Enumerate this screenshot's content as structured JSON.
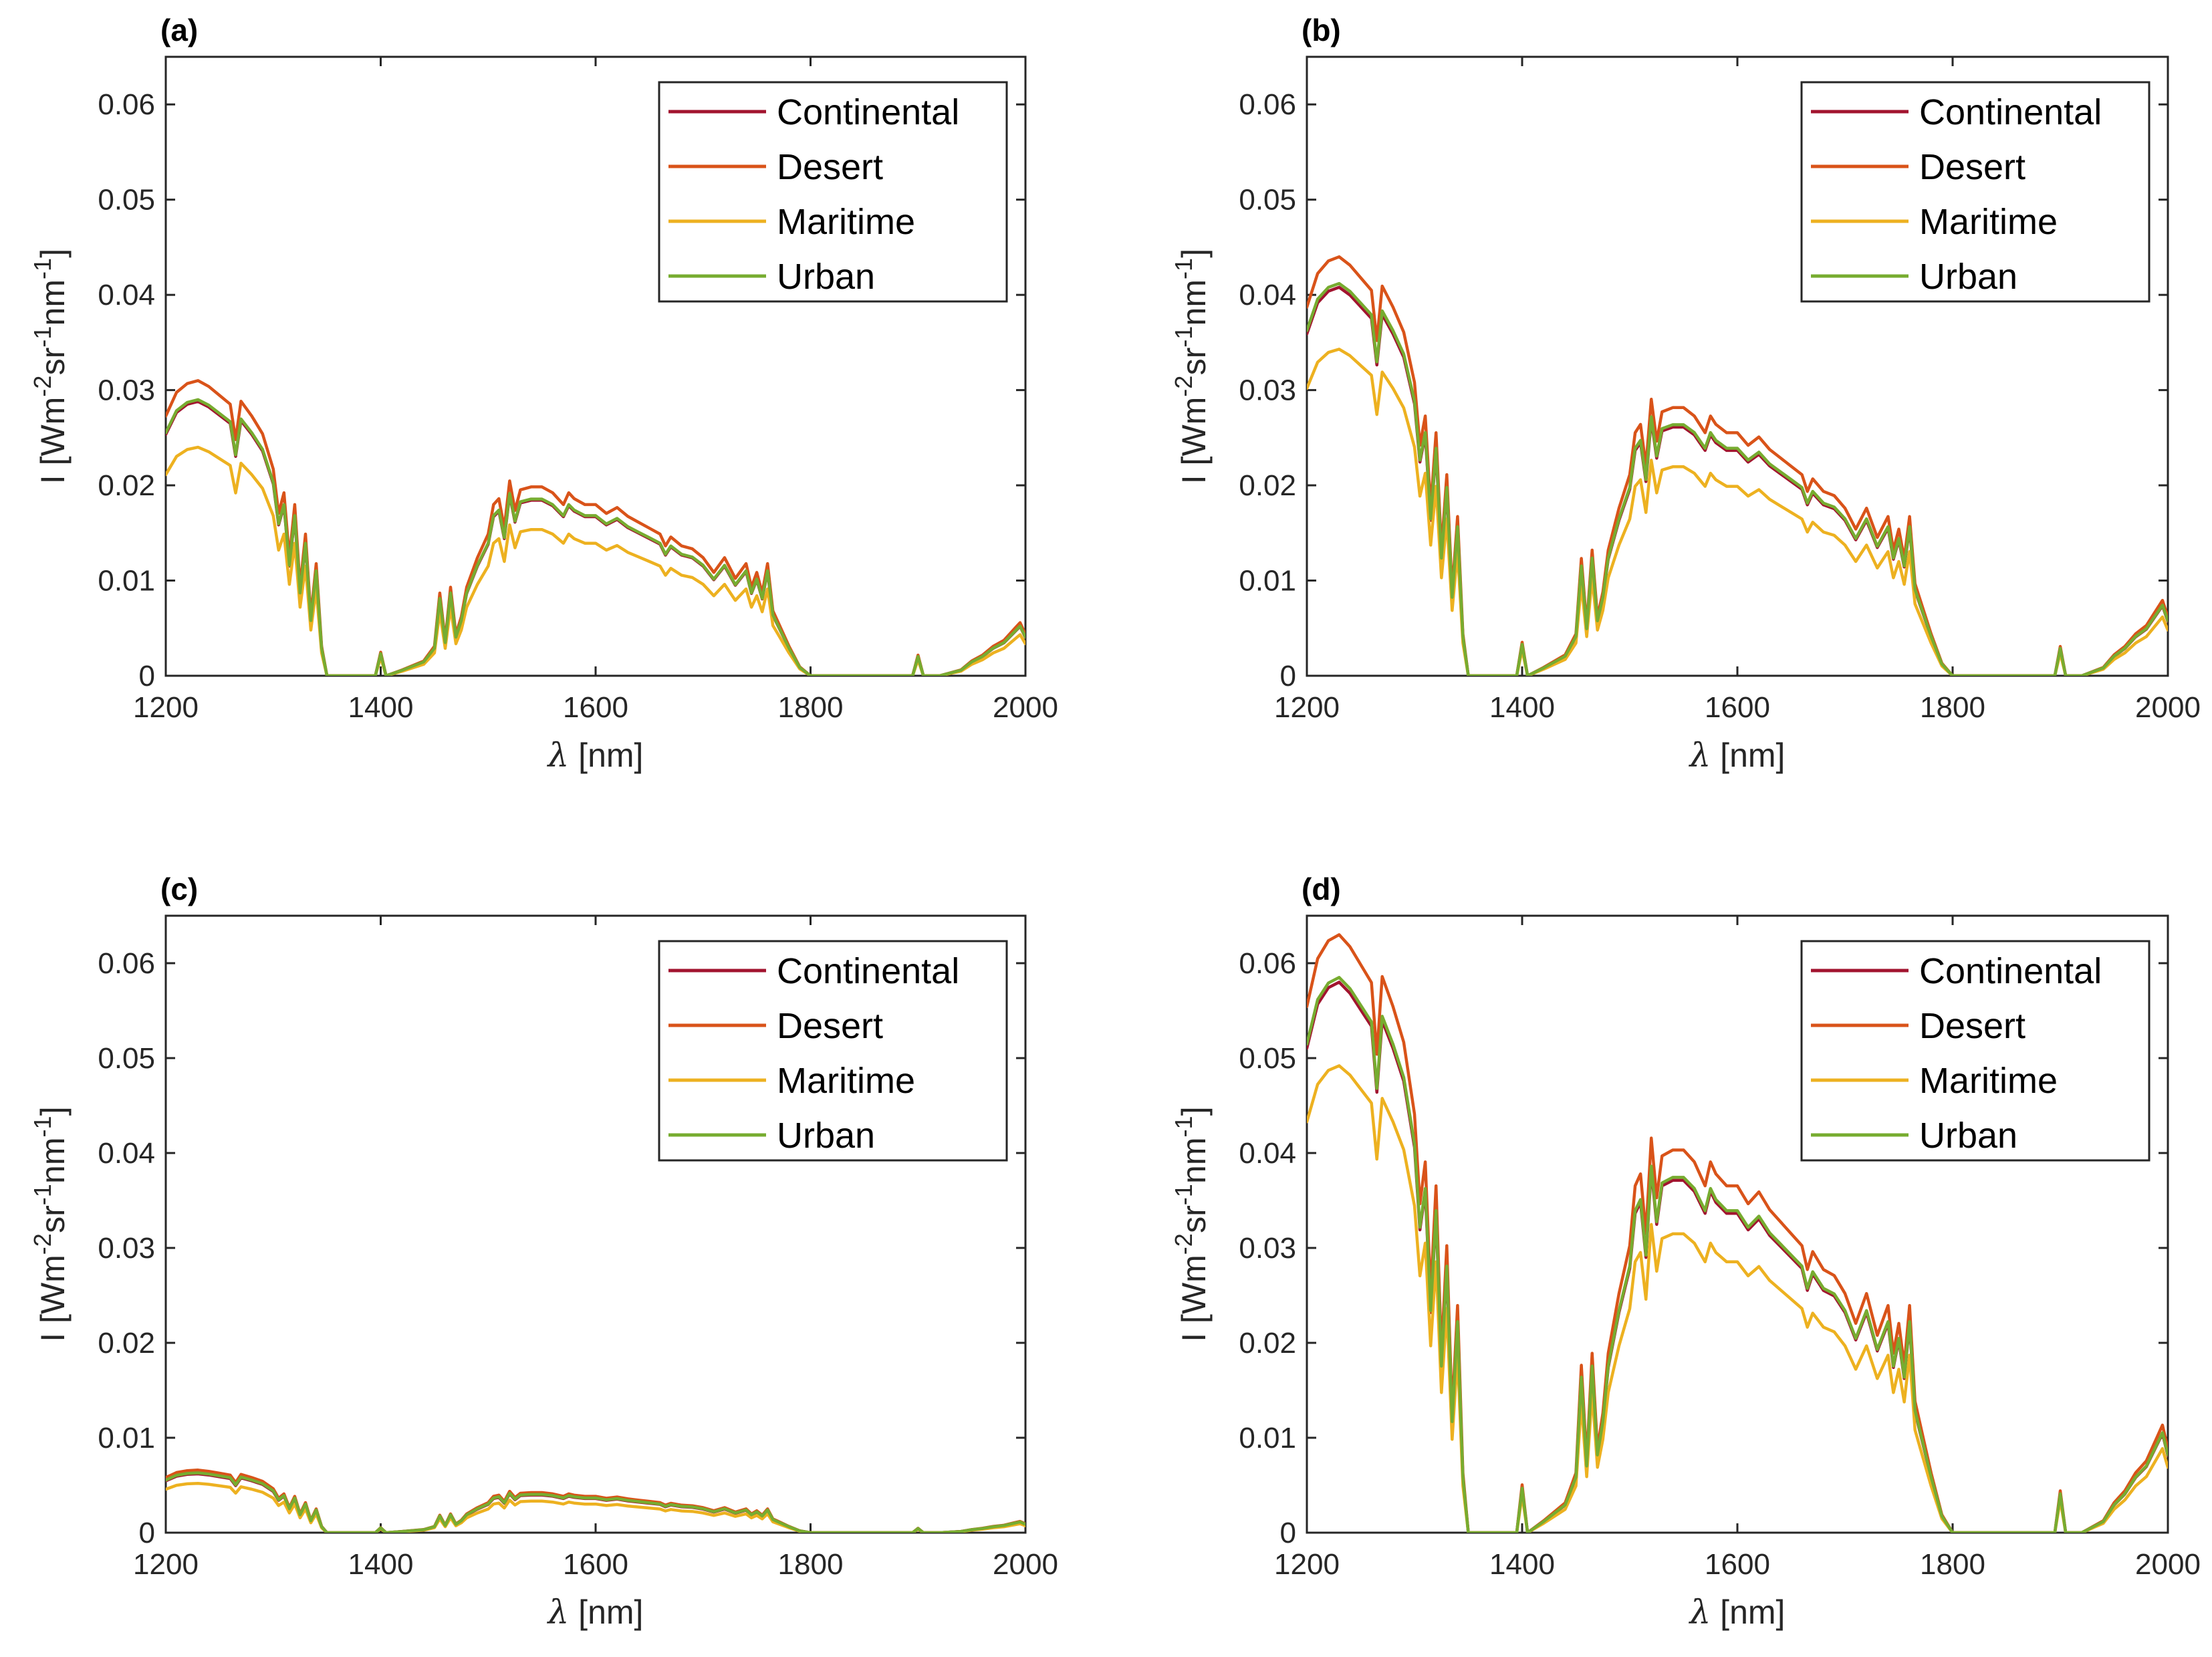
{
  "colors": {
    "Continental": "#a2142f",
    "Desert": "#d95319",
    "Maritime": "#edb120",
    "Urban": "#77ac30"
  },
  "chart_data": [
    {
      "type": "line",
      "panel_label": "(a)",
      "xlabel_symbol": "λ",
      "xlabel_unit": "[nm]",
      "ylabel_main": "I [Wm",
      "ylabel_sup1": "-2",
      "ylabel_mid1": "sr",
      "ylabel_sup2": "-1",
      "ylabel_mid2": "nm",
      "ylabel_sup3": "-1",
      "ylabel_end": "]",
      "xlim": [
        1200,
        2000
      ],
      "ylim": [
        0,
        0.065
      ],
      "xticks": [
        1200,
        1400,
        1600,
        1800,
        2000
      ],
      "xtick_labels": [
        "1200",
        "1400",
        "1600",
        "1800",
        "2000"
      ],
      "yticks": [
        0,
        0.01,
        0.02,
        0.03,
        0.04,
        0.05,
        0.06
      ],
      "ytick_labels": [
        "0",
        "0.01",
        "0.02",
        "0.03",
        "0.04",
        "0.05",
        "0.06"
      ],
      "legend_position": "top-right",
      "legend": [
        "Continental",
        "Desert",
        "Maritime",
        "Urban"
      ],
      "series": [
        {
          "name": "Continental",
          "scale": 0.0288
        },
        {
          "name": "Desert",
          "scale": 0.031
        },
        {
          "name": "Maritime",
          "scale": 0.024
        },
        {
          "name": "Urban",
          "scale": 0.029
        }
      ]
    },
    {
      "type": "line",
      "panel_label": "(b)",
      "xlabel_symbol": "λ",
      "xlabel_unit": "[nm]",
      "ylabel_main": "I [Wm",
      "ylabel_sup1": "-2",
      "ylabel_mid1": "sr",
      "ylabel_sup2": "-1",
      "ylabel_mid2": "nm",
      "ylabel_sup3": "-1",
      "ylabel_end": "]",
      "xlim": [
        1200,
        2000
      ],
      "ylim": [
        0,
        0.065
      ],
      "xticks": [
        1200,
        1400,
        1600,
        1800,
        2000
      ],
      "xtick_labels": [
        "1200",
        "1400",
        "1600",
        "1800",
        "2000"
      ],
      "yticks": [
        0,
        0.01,
        0.02,
        0.03,
        0.04,
        0.05,
        0.06
      ],
      "ytick_labels": [
        "0",
        "0.01",
        "0.02",
        "0.03",
        "0.04",
        "0.05",
        "0.06"
      ],
      "legend_position": "top-right",
      "legend": [
        "Continental",
        "Desert",
        "Maritime",
        "Urban"
      ],
      "series": [
        {
          "name": "Continental",
          "scale": 0.0408
        },
        {
          "name": "Desert",
          "scale": 0.044
        },
        {
          "name": "Maritime",
          "scale": 0.0343
        },
        {
          "name": "Urban",
          "scale": 0.0412
        }
      ]
    },
    {
      "type": "line",
      "panel_label": "(c)",
      "xlabel_symbol": "λ",
      "xlabel_unit": "[nm]",
      "ylabel_main": "I [Wm",
      "ylabel_sup1": "-2",
      "ylabel_mid1": "sr",
      "ylabel_sup2": "-1",
      "ylabel_mid2": "nm",
      "ylabel_sup3": "-1",
      "ylabel_end": "]",
      "xlim": [
        1200,
        2000
      ],
      "ylim": [
        0,
        0.065
      ],
      "xticks": [
        1200,
        1400,
        1600,
        1800,
        2000
      ],
      "xtick_labels": [
        "1200",
        "1400",
        "1600",
        "1800",
        "2000"
      ],
      "yticks": [
        0,
        0.01,
        0.02,
        0.03,
        0.04,
        0.05,
        0.06
      ],
      "ytick_labels": [
        "0",
        "0.01",
        "0.02",
        "0.03",
        "0.04",
        "0.05",
        "0.06"
      ],
      "legend_position": "top-right",
      "legend": [
        "Continental",
        "Desert",
        "Maritime",
        "Urban"
      ],
      "series": [
        {
          "name": "Continental",
          "scale": 0.0062
        },
        {
          "name": "Desert",
          "scale": 0.0066
        },
        {
          "name": "Maritime",
          "scale": 0.0052
        },
        {
          "name": "Urban",
          "scale": 0.0063
        }
      ]
    },
    {
      "type": "line",
      "panel_label": "(d)",
      "xlabel_symbol": "λ",
      "xlabel_unit": "[nm]",
      "ylabel_main": "I [Wm",
      "ylabel_sup1": "-2",
      "ylabel_mid1": "sr",
      "ylabel_sup2": "-1",
      "ylabel_mid2": "nm",
      "ylabel_sup3": "-1",
      "ylabel_end": "]",
      "xlim": [
        1200,
        2000
      ],
      "ylim": [
        0,
        0.065
      ],
      "xticks": [
        1200,
        1400,
        1600,
        1800,
        2000
      ],
      "xtick_labels": [
        "1200",
        "1400",
        "1600",
        "1800",
        "2000"
      ],
      "yticks": [
        0,
        0.01,
        0.02,
        0.03,
        0.04,
        0.05,
        0.06
      ],
      "ytick_labels": [
        "0",
        "0.01",
        "0.02",
        "0.03",
        "0.04",
        "0.05",
        "0.06"
      ],
      "legend_position": "top-right",
      "legend": [
        "Continental",
        "Desert",
        "Maritime",
        "Urban"
      ],
      "series": [
        {
          "name": "Continental",
          "scale": 0.058
        },
        {
          "name": "Desert",
          "scale": 0.063
        },
        {
          "name": "Maritime",
          "scale": 0.0492
        },
        {
          "name": "Urban",
          "scale": 0.0585
        }
      ]
    }
  ],
  "spectrum_shape": {
    "note_unit": "normalized radiance shape shared by all series, multiplied by series scale",
    "wavelength_nm": [
      1200,
      1210,
      1220,
      1230,
      1240,
      1250,
      1260,
      1265,
      1270,
      1280,
      1290,
      1300,
      1305,
      1310,
      1315,
      1320,
      1325,
      1330,
      1335,
      1340,
      1345,
      1350,
      1360,
      1380,
      1395,
      1400,
      1405,
      1420,
      1440,
      1450,
      1455,
      1460,
      1465,
      1470,
      1475,
      1480,
      1490,
      1500,
      1505,
      1510,
      1515,
      1520,
      1525,
      1530,
      1540,
      1550,
      1560,
      1570,
      1575,
      1580,
      1590,
      1600,
      1610,
      1620,
      1630,
      1640,
      1650,
      1660,
      1665,
      1670,
      1680,
      1690,
      1700,
      1710,
      1720,
      1730,
      1740,
      1745,
      1750,
      1755,
      1760,
      1765,
      1770,
      1780,
      1790,
      1800,
      1820,
      1850,
      1880,
      1895,
      1900,
      1905,
      1920,
      1940,
      1950,
      1960,
      1970,
      1980,
      1990,
      1995,
      2000
    ],
    "relative": [
      0.88,
      0.96,
      0.99,
      1.0,
      0.98,
      0.95,
      0.92,
      0.8,
      0.93,
      0.88,
      0.82,
      0.7,
      0.55,
      0.62,
      0.4,
      0.58,
      0.3,
      0.48,
      0.2,
      0.38,
      0.1,
      0.0,
      0.0,
      0.0,
      0.0,
      0.08,
      0.0,
      0.02,
      0.05,
      0.1,
      0.28,
      0.12,
      0.3,
      0.14,
      0.2,
      0.3,
      0.4,
      0.48,
      0.58,
      0.6,
      0.5,
      0.66,
      0.56,
      0.63,
      0.64,
      0.64,
      0.62,
      0.58,
      0.62,
      0.6,
      0.58,
      0.58,
      0.55,
      0.57,
      0.54,
      0.52,
      0.5,
      0.48,
      0.44,
      0.47,
      0.44,
      0.43,
      0.4,
      0.35,
      0.4,
      0.33,
      0.38,
      0.3,
      0.35,
      0.28,
      0.38,
      0.22,
      0.18,
      0.1,
      0.03,
      0.0,
      0.0,
      0.0,
      0.0,
      0.0,
      0.07,
      0.0,
      0.0,
      0.02,
      0.05,
      0.07,
      0.1,
      0.12,
      0.16,
      0.18,
      0.14
    ]
  }
}
